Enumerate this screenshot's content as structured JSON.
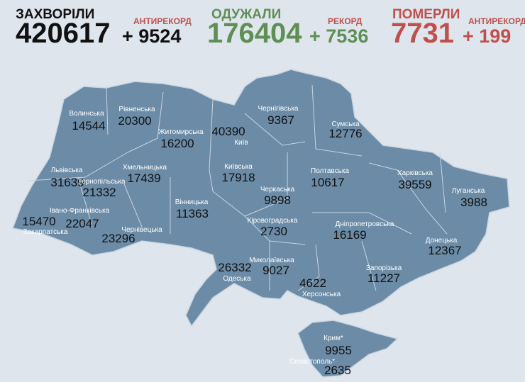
{
  "header": {
    "stats": [
      {
        "label": "ЗАХВОРІЛИ",
        "total": 420617,
        "delta": "+ 9524",
        "note": "АНТИРЕКОРД"
      },
      {
        "label": "ОДУЖАЛИ",
        "total": 176404,
        "delta": "+ 7536",
        "note": "РЕКОРД"
      },
      {
        "label": "ПОМЕРЛИ",
        "total": 7731,
        "delta": "+ 199",
        "note": "АНТИРЕКОРД"
      }
    ]
  },
  "regions": [
    {
      "name": "Волинська",
      "value": 14544
    },
    {
      "name": "Рівненська",
      "value": 20300
    },
    {
      "name": "Житомирська",
      "value": 16200
    },
    {
      "name": "Київ",
      "value": 40390
    },
    {
      "name": "Чернігівська",
      "value": 9367
    },
    {
      "name": "Сумська",
      "value": 12776
    },
    {
      "name": "Львівська",
      "value": 31639
    },
    {
      "name": "Хмельницька",
      "value": 17439
    },
    {
      "name": "Київська",
      "value": 17918
    },
    {
      "name": "Полтавська",
      "value": 10617
    },
    {
      "name": "Харківська",
      "value": 39559
    },
    {
      "name": "Луганська",
      "value": 3988
    },
    {
      "name": "Тернопільська",
      "value": 21332
    },
    {
      "name": "Черкаська",
      "value": 9898
    },
    {
      "name": "Вінницька",
      "value": 11363
    },
    {
      "name": "Івано-Франківська",
      "value": 22047
    },
    {
      "name": "Закарпатська",
      "value": 15470
    },
    {
      "name": "Чернівецька",
      "value": 23296
    },
    {
      "name": "Кіровоградська",
      "value": 2730
    },
    {
      "name": "Дніпропетровська",
      "value": 16169
    },
    {
      "name": "Донецька",
      "value": 12367
    },
    {
      "name": "Одеська",
      "value": 26332
    },
    {
      "name": "Миколаївська",
      "value": 9027
    },
    {
      "name": "Херсонська",
      "value": 4622
    },
    {
      "name": "Запорізька",
      "value": 11227
    },
    {
      "name": "Крим*",
      "value": 9955
    },
    {
      "name": "Севастополь*",
      "value": 2635
    }
  ]
}
